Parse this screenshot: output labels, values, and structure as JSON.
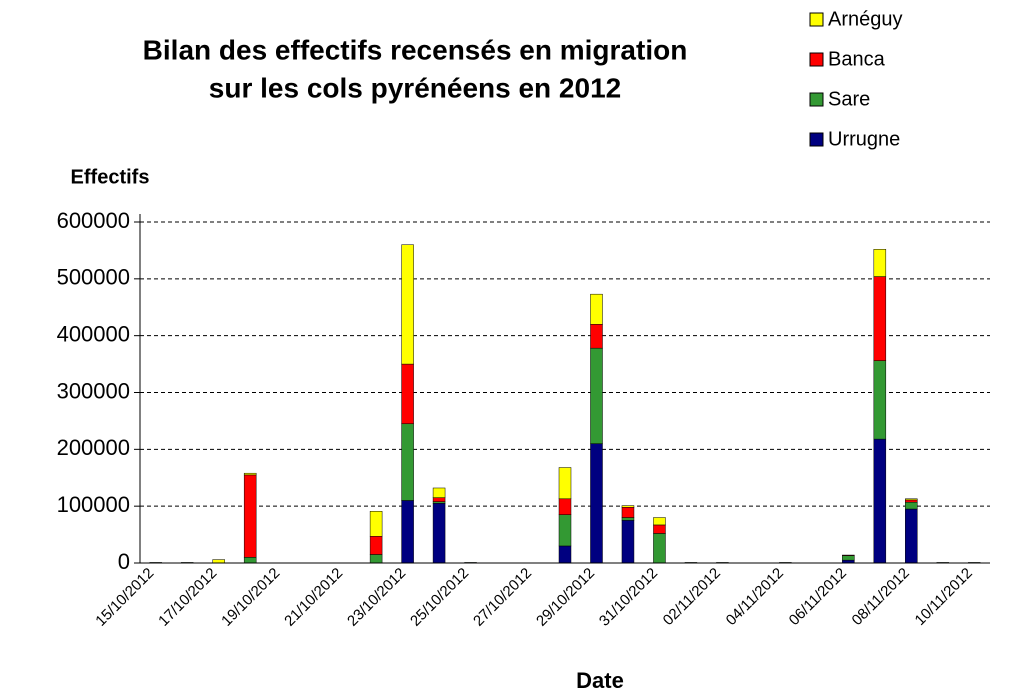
{
  "chart_data": {
    "type": "bar",
    "stacked": true,
    "title": [
      "Bilan des effectifs recensés en migration",
      "sur les cols pyrénéens en 2012"
    ],
    "y_label": "Effectifs",
    "x_label": "Date",
    "categories": [
      "15/10/2012",
      null,
      "17/10/2012",
      null,
      "19/10/2012",
      null,
      "21/10/2012",
      null,
      "23/10/2012",
      null,
      "25/10/2012",
      null,
      "27/10/2012",
      null,
      "29/10/2012",
      null,
      "31/10/2012",
      null,
      "02/11/2012",
      null,
      "04/11/2012",
      null,
      "06/11/2012",
      null,
      "08/11/2012",
      null,
      "10/11/2012"
    ],
    "series": [
      {
        "name": "Urrugne",
        "color": "#000080",
        "values": [
          0,
          0,
          0,
          0,
          0,
          0,
          0,
          0,
          110000,
          105000,
          0,
          0,
          0,
          30000,
          210000,
          75000,
          0,
          0,
          0,
          0,
          0,
          0,
          5000,
          218000,
          95000,
          0,
          0
        ]
      },
      {
        "name": "Sare",
        "color": "#339933",
        "values": [
          1000,
          1000,
          0,
          10000,
          0,
          0,
          0,
          15000,
          135000,
          3000,
          1000,
          0,
          0,
          55000,
          168000,
          5000,
          52000,
          1000,
          1000,
          0,
          1000,
          0,
          8000,
          138000,
          12000,
          1000,
          1000
        ]
      },
      {
        "name": "Banca",
        "color": "#ff0000",
        "values": [
          0,
          0,
          0,
          145000,
          0,
          0,
          0,
          32000,
          105000,
          7000,
          0,
          0,
          0,
          28000,
          42000,
          18000,
          15000,
          0,
          0,
          0,
          0,
          0,
          1000,
          148000,
          4000,
          0,
          0
        ]
      },
      {
        "name": "Arnéguy",
        "color": "#ffff00",
        "values": [
          0,
          0,
          6000,
          3000,
          0,
          0,
          0,
          44000,
          210000,
          17000,
          0,
          0,
          0,
          55000,
          53000,
          3000,
          13000,
          0,
          0,
          0,
          0,
          0,
          0,
          48000,
          2000,
          0,
          0
        ]
      }
    ],
    "ylim": [
      0,
      600000
    ],
    "yticks": [
      0,
      100000,
      200000,
      300000,
      400000,
      500000,
      600000
    ],
    "grid": true,
    "legend": "top-right"
  }
}
